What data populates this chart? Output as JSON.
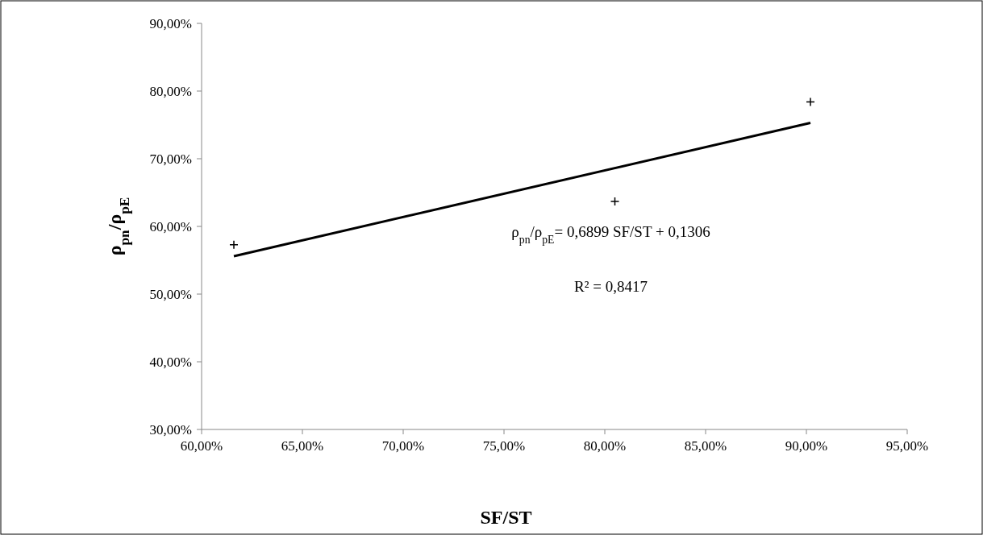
{
  "chart_data": {
    "type": "scatter",
    "xlabel": "SF/ST",
    "ylabel": "ρ$_{pn}$/ρ$_{pE}$",
    "xlim": [
      60,
      95
    ],
    "ylim": [
      30,
      90
    ],
    "xticks": [
      {
        "value": 60,
        "label": "60,00%"
      },
      {
        "value": 65,
        "label": "65,00%"
      },
      {
        "value": 70,
        "label": "70,00%"
      },
      {
        "value": 75,
        "label": "75,00%"
      },
      {
        "value": 80,
        "label": "80,00%"
      },
      {
        "value": 85,
        "label": "85,00%"
      },
      {
        "value": 90,
        "label": "90,00%"
      },
      {
        "value": 95,
        "label": "95,00%"
      }
    ],
    "yticks": [
      {
        "value": 30,
        "label": "30,00%"
      },
      {
        "value": 40,
        "label": "40,00%"
      },
      {
        "value": 50,
        "label": "50,00%"
      },
      {
        "value": 60,
        "label": "60,00%"
      },
      {
        "value": 70,
        "label": "70,00%"
      },
      {
        "value": 80,
        "label": "80,00%"
      },
      {
        "value": 90,
        "label": "90,00%"
      }
    ],
    "grid": false,
    "series": [
      {
        "color": "#000000",
        "marker": "cross",
        "x": [
          61.6,
          80.5,
          90.2
        ],
        "values": [
          57.3,
          63.7,
          78.4
        ]
      },
      {
        "type": "line",
        "color": "#000000",
        "x": [
          61.6,
          90.2
        ],
        "values": [
          55.6,
          75.3
        ]
      }
    ],
    "annotations": [
      "ρ$_{pn}$/ρ$_{pE}$= 0,6899 SF/ST + 0,1306",
      "R² = 0,8417"
    ]
  }
}
